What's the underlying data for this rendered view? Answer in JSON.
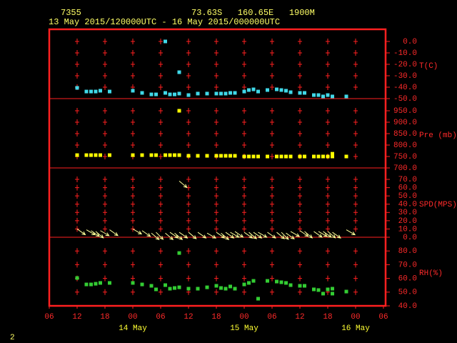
{
  "header": {
    "station": "7355",
    "location": "73.63S   160.65E   1900M",
    "period": "13 May 2015/120000UTC - 16 May 2015/000000UTC"
  },
  "footer": "2",
  "chart_data": [
    {
      "type": "scatter",
      "ylabel": "T(C)",
      "color": "#40d8e8",
      "x": [
        12,
        14,
        15,
        16,
        17,
        19,
        24,
        26,
        28,
        29,
        31,
        32,
        33,
        34,
        36,
        38,
        40,
        42,
        43,
        44,
        45,
        46,
        48,
        49,
        50,
        51,
        53,
        55,
        56,
        57,
        58,
        60,
        61,
        63,
        64,
        65,
        66,
        67,
        70,
        31,
        34
      ],
      "values": [
        -40.6,
        -43.8,
        -43.8,
        -43.8,
        -43.1,
        -43.8,
        -43.1,
        -45,
        -46.3,
        -46.3,
        -45,
        -46.3,
        -46.3,
        -45.6,
        -46.9,
        -45.6,
        -45.6,
        -45.6,
        -45.6,
        -45.6,
        -45,
        -45,
        -43.8,
        -42.5,
        -41.9,
        -43.8,
        -42.5,
        -41.9,
        -42.5,
        -43.1,
        -44.4,
        -45,
        -45,
        -46.9,
        -46.9,
        -48.1,
        -46.9,
        -48.1,
        -48.1,
        0,
        -26.9
      ],
      "ylim": [
        -50,
        10
      ],
      "yticks": [
        {
          "value": 0,
          "label": "0.0"
        },
        {
          "value": -10,
          "label": "-10.0"
        },
        {
          "value": -20,
          "label": "-20.0"
        },
        {
          "value": -30,
          "label": "-30.0"
        },
        {
          "value": -40,
          "label": "-40.0"
        },
        {
          "value": -50,
          "label": "-50.0"
        }
      ],
      "grid": "cross"
    },
    {
      "type": "scatter",
      "ylabel": "Pre (mb)",
      "color": "#ffff00",
      "x": [
        12,
        14,
        15,
        16,
        17,
        19,
        24,
        26,
        28,
        29,
        31,
        32,
        33,
        34,
        36,
        38,
        40,
        42,
        43,
        44,
        45,
        46,
        48,
        49,
        50,
        51,
        53,
        55,
        56,
        57,
        58,
        60,
        61,
        63,
        64,
        65,
        66,
        67,
        70,
        34,
        67
      ],
      "values": [
        756,
        756,
        756,
        756,
        756,
        756,
        756,
        756,
        756,
        756,
        756,
        756,
        756,
        756,
        753,
        753,
        753,
        753,
        753,
        753,
        753,
        753,
        750,
        750,
        750,
        750,
        750,
        750,
        750,
        750,
        750,
        750,
        750,
        750,
        750,
        750,
        750,
        750,
        750,
        950,
        762
      ],
      "ylim": [
        700,
        1000
      ],
      "yticks": [
        {
          "value": 950,
          "label": "950.0"
        },
        {
          "value": 900,
          "label": "900.0"
        },
        {
          "value": 850,
          "label": "850.0"
        },
        {
          "value": 800,
          "label": "800.0"
        },
        {
          "value": 750,
          "label": "750.0"
        },
        {
          "value": 700,
          "label": "700.0"
        }
      ],
      "grid": "cross"
    },
    {
      "type": "wind",
      "ylabel": "SPD(MPS)",
      "color": "#ffff99",
      "x": [
        12,
        14,
        15,
        16,
        17,
        19,
        24,
        26,
        28,
        29,
        31,
        32,
        33,
        34,
        36,
        38,
        40,
        42,
        43,
        44,
        45,
        46,
        48,
        49,
        50,
        51,
        53,
        55,
        56,
        57,
        58,
        60,
        61,
        63,
        64,
        65,
        66,
        67,
        70,
        34
      ],
      "values": [
        10,
        9,
        8,
        7,
        8,
        9,
        10,
        8,
        5,
        6,
        5,
        6,
        5,
        6,
        6,
        6,
        5,
        6,
        5,
        6,
        6,
        7,
        6,
        6,
        6,
        6,
        6,
        6,
        6,
        5,
        7,
        8,
        7,
        7,
        7,
        7,
        7,
        6,
        9,
        68
      ],
      "directions": [
        125,
        120,
        125,
        130,
        120,
        125,
        120,
        125,
        130,
        135,
        130,
        125,
        130,
        125,
        130,
        125,
        120,
        125,
        130,
        125,
        120,
        125,
        125,
        130,
        125,
        120,
        125,
        130,
        135,
        125,
        120,
        125,
        130,
        125,
        120,
        125,
        130,
        125,
        120,
        130
      ],
      "ylim": [
        0,
        83
      ],
      "yticks": [
        {
          "value": 70,
          "label": "70.0"
        },
        {
          "value": 60,
          "label": "60.0"
        },
        {
          "value": 50,
          "label": "50.0"
        },
        {
          "value": 40,
          "label": "40.0"
        },
        {
          "value": 30,
          "label": "30.0"
        },
        {
          "value": 20,
          "label": "20.0"
        },
        {
          "value": 10,
          "label": "10.0"
        },
        {
          "value": 0,
          "label": "0.0"
        }
      ],
      "grid": "cross"
    },
    {
      "type": "scatter",
      "ylabel": "RH(%)",
      "color": "#33cc33",
      "x": [
        12,
        14,
        15,
        16,
        17,
        19,
        24,
        26,
        28,
        29,
        31,
        32,
        33,
        34,
        36,
        38,
        40,
        42,
        43,
        44,
        45,
        46,
        48,
        49,
        50,
        51,
        53,
        55,
        56,
        57,
        58,
        60,
        61,
        63,
        64,
        65,
        66,
        67,
        70,
        34,
        67
      ],
      "values": [
        60.3,
        55.6,
        55.6,
        56.1,
        56.7,
        56.7,
        56.7,
        55.6,
        54.6,
        52,
        55.1,
        52.5,
        53,
        53.5,
        52.5,
        52.5,
        53.5,
        54.6,
        53,
        52.5,
        54.1,
        52.5,
        55.6,
        56.7,
        58.2,
        45.2,
        58.2,
        57.7,
        57.2,
        56.7,
        55.1,
        54.6,
        54.6,
        52,
        51.5,
        48.9,
        52,
        52.5,
        50.4,
        78.5,
        48.9
      ],
      "ylim": [
        40,
        90
      ],
      "yticks": [
        {
          "value": 80,
          "label": "80.0"
        },
        {
          "value": 70,
          "label": "70.0"
        },
        {
          "value": 60,
          "label": "60.0"
        },
        {
          "value": 50,
          "label": "50.0"
        },
        {
          "value": 40,
          "label": "40.0"
        }
      ],
      "grid": "cross",
      "xlim": [
        6,
        78
      ],
      "xticks": [
        {
          "value": 6,
          "label": "06"
        },
        {
          "value": 12,
          "label": "12"
        },
        {
          "value": 18,
          "label": "18"
        },
        {
          "value": 24,
          "label": "00"
        },
        {
          "value": 30,
          "label": "06"
        },
        {
          "value": 36,
          "label": "12"
        },
        {
          "value": 42,
          "label": "18"
        },
        {
          "value": 48,
          "label": "00"
        },
        {
          "value": 54,
          "label": "06"
        },
        {
          "value": 60,
          "label": "12"
        },
        {
          "value": 66,
          "label": "18"
        },
        {
          "value": 72,
          "label": "00"
        },
        {
          "value": 78,
          "label": "06"
        }
      ],
      "xdates": [
        {
          "value": 24,
          "label": "14 May"
        },
        {
          "value": 48,
          "label": "15 May"
        },
        {
          "value": 72,
          "label": "16 May"
        }
      ]
    }
  ]
}
